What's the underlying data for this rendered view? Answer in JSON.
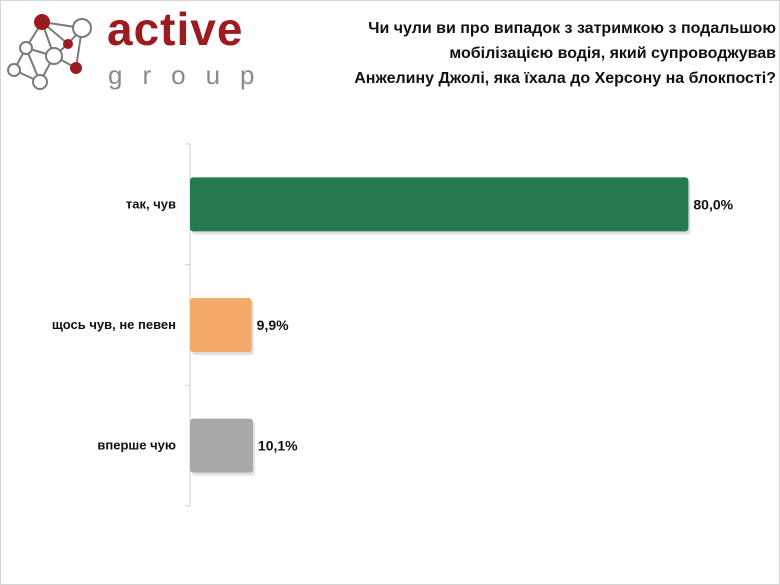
{
  "brand": {
    "name": "active",
    "sub": "group",
    "accent": "#9b1b1f",
    "sub_color": "#8a8a8a"
  },
  "title_lines": [
    "Чи чули ви про випадок з затримкою з подальшою",
    "мобілізацією водія, який супроводжував",
    "Анжелину Джолі, яка їхала до Херсону на блокпості?"
  ],
  "chart_data": {
    "type": "bar",
    "orientation": "horizontal",
    "title": "Чи чули ви про випадок з затримкою з подальшою мобілізацією водія, який супроводжував Анжелину Джолі, яка їхала до Херсону на блокпості?",
    "categories": [
      "так, чув",
      "щось чув, не певен",
      "вперше чую"
    ],
    "values": [
      80.0,
      9.9,
      10.1
    ],
    "value_labels": [
      "80,0%",
      "9,9%",
      "10,1%"
    ],
    "colors": [
      "#267a4f",
      "#f3aa6b",
      "#a9a9a9"
    ],
    "xlim": [
      0,
      100
    ],
    "grid": false,
    "legend": "none"
  }
}
